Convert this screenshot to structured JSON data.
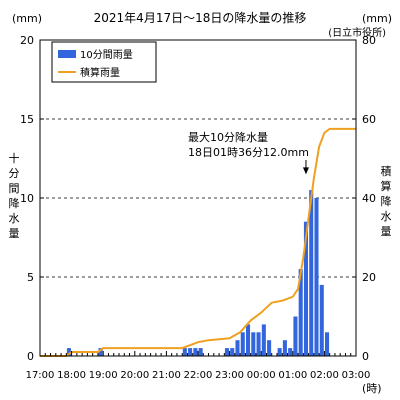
{
  "chart_data": {
    "type": "bar+line",
    "title": "2021年4月17日～18日の降水量の推移",
    "subtitle": "(日立市役所)",
    "left_unit": "(mm)",
    "right_unit": "(mm)",
    "x_unit": "(時)",
    "left_axis_label": "十分間降水量",
    "right_axis_label": "積算降水量",
    "x_ticks": [
      "17:00",
      "18:00",
      "19:00",
      "20:00",
      "21:00",
      "22:00",
      "23:00",
      "00:00",
      "01:00",
      "02:00",
      "03:00"
    ],
    "left_ticks": [
      "0",
      "5",
      "10",
      "15",
      "20"
    ],
    "right_ticks": [
      "0",
      "20",
      "40",
      "60",
      "80"
    ],
    "left_ylim": [
      0,
      20
    ],
    "right_ylim": [
      0,
      80
    ],
    "x_range_minutes": [
      0,
      600
    ],
    "grid": "horizontal dashed at 5, 10, 15",
    "legend_position": "top-left",
    "legend": {
      "bar_label": "10分間雨量",
      "line_label": "積算雨量"
    },
    "colors": {
      "bar": "#3366dd",
      "line": "#f0a020",
      "axis": "#000000",
      "grid": "#000000"
    },
    "annotation": {
      "line1": "最大10分降水量",
      "line2": "18日01時36分12.0mm",
      "target_time_minutes": 510,
      "target_value": 12.0
    },
    "bars": {
      "series_name": "10分間雨量",
      "interval_minutes": 10,
      "points": [
        {
          "t": 60,
          "v": 0.5
        },
        {
          "t": 120,
          "v": 0.5
        },
        {
          "t": 280,
          "v": 0.5
        },
        {
          "t": 290,
          "v": 0.5
        },
        {
          "t": 300,
          "v": 0.5
        },
        {
          "t": 310,
          "v": 0.5
        },
        {
          "t": 360,
          "v": 0.5
        },
        {
          "t": 370,
          "v": 0.5
        },
        {
          "t": 380,
          "v": 1.0
        },
        {
          "t": 390,
          "v": 1.5
        },
        {
          "t": 400,
          "v": 2.0
        },
        {
          "t": 410,
          "v": 1.5
        },
        {
          "t": 420,
          "v": 1.5
        },
        {
          "t": 430,
          "v": 2.0
        },
        {
          "t": 440,
          "v": 1.0
        },
        {
          "t": 460,
          "v": 0.5
        },
        {
          "t": 470,
          "v": 1.0
        },
        {
          "t": 480,
          "v": 0.5
        },
        {
          "t": 490,
          "v": 2.5
        },
        {
          "t": 500,
          "v": 5.5
        },
        {
          "t": 510,
          "v": 8.5
        },
        {
          "t": 520,
          "v": 10.5
        },
        {
          "t": 530,
          "v": 10.0
        },
        {
          "t": 540,
          "v": 4.5
        },
        {
          "t": 550,
          "v": 1.5
        }
      ]
    },
    "cumulative": {
      "series_name": "積算雨量",
      "points": [
        {
          "t": 0,
          "v": 0
        },
        {
          "t": 50,
          "v": 0
        },
        {
          "t": 60,
          "v": 1
        },
        {
          "t": 110,
          "v": 1
        },
        {
          "t": 120,
          "v": 2
        },
        {
          "t": 270,
          "v": 2
        },
        {
          "t": 280,
          "v": 2.5
        },
        {
          "t": 290,
          "v": 3
        },
        {
          "t": 300,
          "v": 3.5
        },
        {
          "t": 320,
          "v": 4
        },
        {
          "t": 360,
          "v": 4.5
        },
        {
          "t": 380,
          "v": 6
        },
        {
          "t": 400,
          "v": 9
        },
        {
          "t": 420,
          "v": 11
        },
        {
          "t": 440,
          "v": 13.5
        },
        {
          "t": 460,
          "v": 14
        },
        {
          "t": 480,
          "v": 15
        },
        {
          "t": 490,
          "v": 17
        },
        {
          "t": 500,
          "v": 25
        },
        {
          "t": 510,
          "v": 35
        },
        {
          "t": 520,
          "v": 45
        },
        {
          "t": 530,
          "v": 53
        },
        {
          "t": 540,
          "v": 56.5
        },
        {
          "t": 550,
          "v": 57.5
        },
        {
          "t": 560,
          "v": 57.5
        },
        {
          "t": 600,
          "v": 57.5
        }
      ]
    }
  }
}
